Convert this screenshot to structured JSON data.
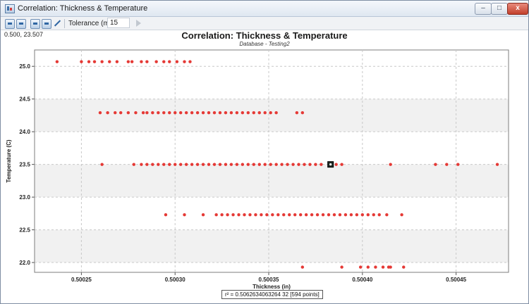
{
  "window": {
    "title": "Correlation: Thickness & Temperature",
    "controls": {
      "minimize": "–",
      "maximize": "□",
      "close": "x"
    }
  },
  "toolbar": {
    "icons": [
      "copy-icon",
      "export-icon",
      "zoom-fit-icon",
      "zoom-region-icon",
      "edit-pen-icon"
    ],
    "tolerance_label": "Tolerance (min):",
    "tolerance_value": "15"
  },
  "cursor_readout": "0.500, 23.507",
  "status": "r² = 0.5062634063264 32 [594 points]",
  "chart_data": {
    "type": "scatter",
    "title": "Correlation: Thickness & Temperature",
    "subtitle": "Database - Testing2",
    "xlabel": "Thickness (in)",
    "ylabel": "Temperature (C)",
    "xlim": [
      0.500225,
      0.500478
    ],
    "ylim": [
      21.85,
      25.25
    ],
    "x_ticks": [
      0.50025,
      0.5003,
      0.50035,
      0.5004,
      0.50045
    ],
    "x_tick_labels": [
      "0.50025",
      "0.50030",
      "0.50035",
      "0.50040",
      "0.50045"
    ],
    "y_ticks": [
      22.0,
      22.5,
      23.0,
      23.5,
      24.0,
      24.5,
      25.0
    ],
    "y_tick_labels": [
      "22.0",
      "22.5",
      "23.0",
      "23.5",
      "24.0",
      "24.5",
      "25.0"
    ],
    "grid": true,
    "point_color": "#e53935",
    "selected_point": {
      "x": 0.500383,
      "y": 23.5
    },
    "series": [
      {
        "values": [
          {
            "x": 0.500237,
            "y": 25.07
          },
          {
            "x": 0.50025,
            "y": 25.07
          },
          {
            "x": 0.500254,
            "y": 25.07
          },
          {
            "x": 0.500257,
            "y": 25.07
          },
          {
            "x": 0.500261,
            "y": 25.07
          },
          {
            "x": 0.500265,
            "y": 25.07
          },
          {
            "x": 0.500269,
            "y": 25.07
          },
          {
            "x": 0.500275,
            "y": 25.07
          },
          {
            "x": 0.500277,
            "y": 25.07
          },
          {
            "x": 0.500282,
            "y": 25.07
          },
          {
            "x": 0.500285,
            "y": 25.07
          },
          {
            "x": 0.50029,
            "y": 25.07
          },
          {
            "x": 0.500294,
            "y": 25.07
          },
          {
            "x": 0.500297,
            "y": 25.07
          },
          {
            "x": 0.500301,
            "y": 25.07
          },
          {
            "x": 0.500305,
            "y": 25.07
          },
          {
            "x": 0.500308,
            "y": 25.07
          },
          {
            "x": 0.50026,
            "y": 24.29
          },
          {
            "x": 0.500264,
            "y": 24.29
          },
          {
            "x": 0.500268,
            "y": 24.29
          },
          {
            "x": 0.500271,
            "y": 24.29
          },
          {
            "x": 0.500275,
            "y": 24.29
          },
          {
            "x": 0.500279,
            "y": 24.29
          },
          {
            "x": 0.500283,
            "y": 24.29
          },
          {
            "x": 0.500285,
            "y": 24.29
          },
          {
            "x": 0.500288,
            "y": 24.29
          },
          {
            "x": 0.500291,
            "y": 24.29
          },
          {
            "x": 0.500294,
            "y": 24.29
          },
          {
            "x": 0.500297,
            "y": 24.29
          },
          {
            "x": 0.5003,
            "y": 24.29
          },
          {
            "x": 0.500303,
            "y": 24.29
          },
          {
            "x": 0.500306,
            "y": 24.29
          },
          {
            "x": 0.500309,
            "y": 24.29
          },
          {
            "x": 0.500312,
            "y": 24.29
          },
          {
            "x": 0.500315,
            "y": 24.29
          },
          {
            "x": 0.500318,
            "y": 24.29
          },
          {
            "x": 0.500321,
            "y": 24.29
          },
          {
            "x": 0.500324,
            "y": 24.29
          },
          {
            "x": 0.500327,
            "y": 24.29
          },
          {
            "x": 0.50033,
            "y": 24.29
          },
          {
            "x": 0.500333,
            "y": 24.29
          },
          {
            "x": 0.500336,
            "y": 24.29
          },
          {
            "x": 0.500339,
            "y": 24.29
          },
          {
            "x": 0.500342,
            "y": 24.29
          },
          {
            "x": 0.500345,
            "y": 24.29
          },
          {
            "x": 0.500348,
            "y": 24.29
          },
          {
            "x": 0.500351,
            "y": 24.29
          },
          {
            "x": 0.500354,
            "y": 24.29
          },
          {
            "x": 0.500365,
            "y": 24.29
          },
          {
            "x": 0.500368,
            "y": 24.29
          },
          {
            "x": 0.500261,
            "y": 23.5
          },
          {
            "x": 0.500278,
            "y": 23.5
          },
          {
            "x": 0.500282,
            "y": 23.5
          },
          {
            "x": 0.500285,
            "y": 23.5
          },
          {
            "x": 0.500288,
            "y": 23.5
          },
          {
            "x": 0.500291,
            "y": 23.5
          },
          {
            "x": 0.500294,
            "y": 23.5
          },
          {
            "x": 0.500297,
            "y": 23.5
          },
          {
            "x": 0.5003,
            "y": 23.5
          },
          {
            "x": 0.500303,
            "y": 23.5
          },
          {
            "x": 0.500306,
            "y": 23.5
          },
          {
            "x": 0.500309,
            "y": 23.5
          },
          {
            "x": 0.500312,
            "y": 23.5
          },
          {
            "x": 0.500315,
            "y": 23.5
          },
          {
            "x": 0.500318,
            "y": 23.5
          },
          {
            "x": 0.500321,
            "y": 23.5
          },
          {
            "x": 0.500324,
            "y": 23.5
          },
          {
            "x": 0.500327,
            "y": 23.5
          },
          {
            "x": 0.50033,
            "y": 23.5
          },
          {
            "x": 0.500333,
            "y": 23.5
          },
          {
            "x": 0.500336,
            "y": 23.5
          },
          {
            "x": 0.500339,
            "y": 23.5
          },
          {
            "x": 0.500342,
            "y": 23.5
          },
          {
            "x": 0.500345,
            "y": 23.5
          },
          {
            "x": 0.500348,
            "y": 23.5
          },
          {
            "x": 0.500351,
            "y": 23.5
          },
          {
            "x": 0.500354,
            "y": 23.5
          },
          {
            "x": 0.500357,
            "y": 23.5
          },
          {
            "x": 0.50036,
            "y": 23.5
          },
          {
            "x": 0.500363,
            "y": 23.5
          },
          {
            "x": 0.500366,
            "y": 23.5
          },
          {
            "x": 0.500369,
            "y": 23.5
          },
          {
            "x": 0.500372,
            "y": 23.5
          },
          {
            "x": 0.500375,
            "y": 23.5
          },
          {
            "x": 0.500378,
            "y": 23.5
          },
          {
            "x": 0.500386,
            "y": 23.5
          },
          {
            "x": 0.500389,
            "y": 23.5
          },
          {
            "x": 0.500415,
            "y": 23.5
          },
          {
            "x": 0.500439,
            "y": 23.5
          },
          {
            "x": 0.500445,
            "y": 23.5
          },
          {
            "x": 0.500451,
            "y": 23.5
          },
          {
            "x": 0.500472,
            "y": 23.5
          },
          {
            "x": 0.500295,
            "y": 22.73
          },
          {
            "x": 0.500305,
            "y": 22.73
          },
          {
            "x": 0.500315,
            "y": 22.73
          },
          {
            "x": 0.500322,
            "y": 22.73
          },
          {
            "x": 0.500325,
            "y": 22.73
          },
          {
            "x": 0.500328,
            "y": 22.73
          },
          {
            "x": 0.500331,
            "y": 22.73
          },
          {
            "x": 0.500334,
            "y": 22.73
          },
          {
            "x": 0.500337,
            "y": 22.73
          },
          {
            "x": 0.50034,
            "y": 22.73
          },
          {
            "x": 0.500343,
            "y": 22.73
          },
          {
            "x": 0.500346,
            "y": 22.73
          },
          {
            "x": 0.500349,
            "y": 22.73
          },
          {
            "x": 0.500352,
            "y": 22.73
          },
          {
            "x": 0.500355,
            "y": 22.73
          },
          {
            "x": 0.500358,
            "y": 22.73
          },
          {
            "x": 0.500361,
            "y": 22.73
          },
          {
            "x": 0.500364,
            "y": 22.73
          },
          {
            "x": 0.500367,
            "y": 22.73
          },
          {
            "x": 0.50037,
            "y": 22.73
          },
          {
            "x": 0.500373,
            "y": 22.73
          },
          {
            "x": 0.500376,
            "y": 22.73
          },
          {
            "x": 0.500379,
            "y": 22.73
          },
          {
            "x": 0.500382,
            "y": 22.73
          },
          {
            "x": 0.500385,
            "y": 22.73
          },
          {
            "x": 0.500388,
            "y": 22.73
          },
          {
            "x": 0.500391,
            "y": 22.73
          },
          {
            "x": 0.500394,
            "y": 22.73
          },
          {
            "x": 0.500397,
            "y": 22.73
          },
          {
            "x": 0.5004,
            "y": 22.73
          },
          {
            "x": 0.500403,
            "y": 22.73
          },
          {
            "x": 0.500406,
            "y": 22.73
          },
          {
            "x": 0.500409,
            "y": 22.73
          },
          {
            "x": 0.500413,
            "y": 22.73
          },
          {
            "x": 0.500421,
            "y": 22.73
          },
          {
            "x": 0.500368,
            "y": 21.93
          },
          {
            "x": 0.500389,
            "y": 21.93
          },
          {
            "x": 0.500399,
            "y": 21.93
          },
          {
            "x": 0.500403,
            "y": 21.93
          },
          {
            "x": 0.500407,
            "y": 21.93
          },
          {
            "x": 0.500411,
            "y": 21.93
          },
          {
            "x": 0.500414,
            "y": 21.93
          },
          {
            "x": 0.500415,
            "y": 21.93
          },
          {
            "x": 0.500422,
            "y": 21.93
          }
        ]
      }
    ]
  }
}
